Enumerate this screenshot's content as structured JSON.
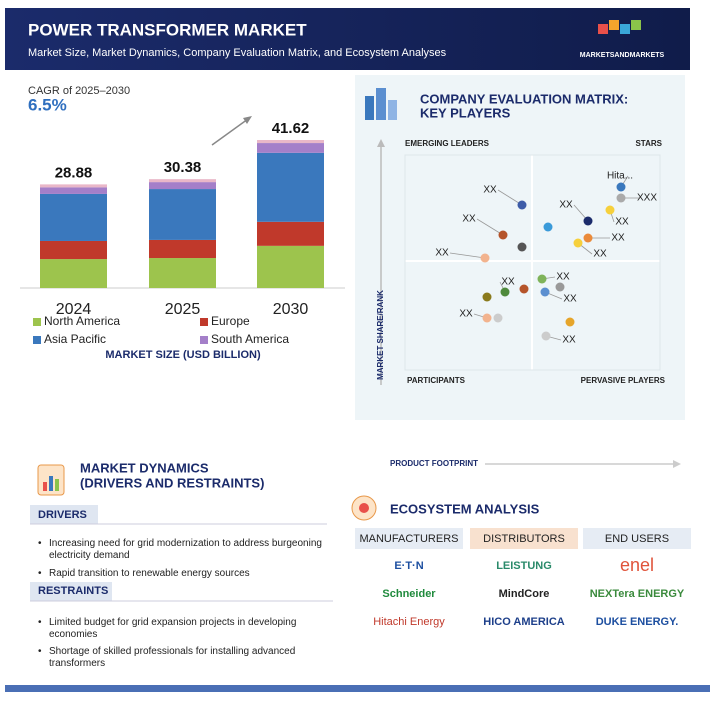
{
  "header": {
    "title": "POWER TRANSFORMER MARKET",
    "subtitle": "Market Size, Market Dynamics, Company Evaluation Matrix, and Ecosystem Analyses",
    "brand": "MARKETSANDMARKETS"
  },
  "chart_data": {
    "type": "bar",
    "stacked": true,
    "cagr_label": "CAGR of 2025–2030",
    "cagr_value": "6.5%",
    "categories": [
      "2024",
      "2025",
      "2030"
    ],
    "totals": [
      28.88,
      30.38,
      41.62
    ],
    "series": [
      {
        "name": "North America",
        "color": "#9dc44d",
        "values": [
          8.3,
          8.6,
          12.1
        ]
      },
      {
        "name": "Europe",
        "color": "#c0392b",
        "values": [
          5.2,
          5.2,
          6.9
        ]
      },
      {
        "name": "Asia Pacific",
        "color": "#3a78bd",
        "values": [
          13.5,
          14.6,
          19.8
        ]
      },
      {
        "name": "South America",
        "color": "#a47fc9",
        "values": [
          1.9,
          2.0,
          2.8
        ]
      }
    ],
    "x_axis_label": "MARKET SIZE (USD BILLION)"
  },
  "matrix": {
    "title_line1": "COMPANY EVALUATION MATRIX:",
    "title_line2": "KEY PLAYERS",
    "quadrants": {
      "top_left": "EMERGING LEADERS",
      "top_right": "STARS",
      "bottom_left": "PARTICIPANTS",
      "bottom_right": "PERVASIVE PLAYERS"
    },
    "y_axis_label": "MARKET SHARE/RANK",
    "x_axis_label": "PRODUCT FOOTPRINT",
    "points": [
      "XX",
      "XX",
      "XX",
      "XX",
      "XX",
      "XX",
      "XX",
      "Hita...",
      "XXX",
      "XX",
      "XX",
      "XX",
      "XX",
      "XX"
    ]
  },
  "dynamics": {
    "title_line1": "MARKET DYNAMICS",
    "title_line2": "(DRIVERS AND RESTRAINTS)",
    "drivers_label": "DRIVERS",
    "drivers": [
      "Increasing need for grid modernization to address burgeoning electricity demand",
      "Rapid transition to renewable energy sources"
    ],
    "restraints_label": "RESTRAINTS",
    "restraints": [
      "Limited budget for grid expansion projects in developing economies",
      "Shortage of skilled professionals for installing advanced transformers"
    ]
  },
  "ecosystem": {
    "title": "ECOSYSTEM ANALYSIS",
    "columns": [
      {
        "name": "MANUFACTURERS",
        "logos": [
          "E·T·N",
          "Schneider",
          "Hitachi Energy"
        ]
      },
      {
        "name": "DISTRIBUTORS",
        "logos": [
          "LEISTUNG",
          "MindCore",
          "HICO AMERICA"
        ]
      },
      {
        "name": "END USERS",
        "logos": [
          "enel",
          "NEXTera ENERGY",
          "DUKE ENERGY."
        ]
      }
    ]
  }
}
